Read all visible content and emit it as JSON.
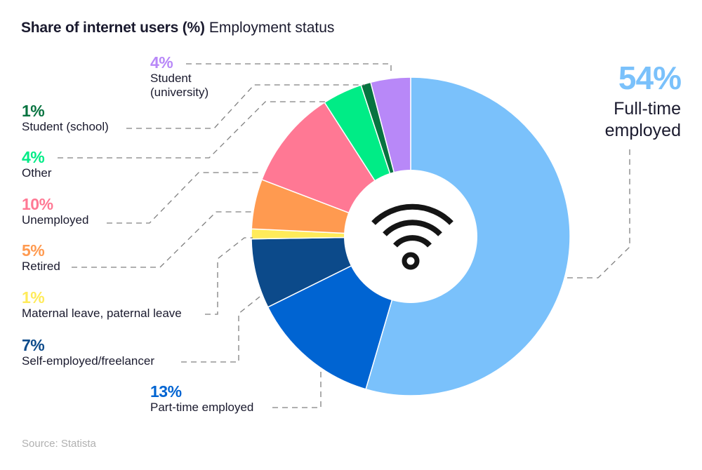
{
  "title": {
    "bold": "Share of internet users (%)",
    "light": "Employment status"
  },
  "source": "Source: Statista",
  "center_icon": "wifi-icon",
  "chart_data": {
    "type": "pie",
    "variant": "donut",
    "title": "Share of internet users (%) Employment status",
    "unit": "%",
    "start_angle_deg": 0,
    "direction": "clockwise",
    "categories": [
      "Full-time employed",
      "Part-time employed",
      "Self-employed/freelancer",
      "Maternal leave, paternal leave",
      "Retired",
      "Unemployed",
      "Other",
      "Student (school)",
      "Student (university)"
    ],
    "values": [
      54,
      13,
      7,
      1,
      5,
      10,
      4,
      1,
      4
    ],
    "colors": [
      "#7ac1fb",
      "#0064d2",
      "#0c4a8a",
      "#ffeb5a",
      "#ff9a50",
      "#ff7894",
      "#00ec86",
      "#077340",
      "#b888f8"
    ],
    "labels": [
      {
        "pct": "54%",
        "name_lines": [
          "Full-time",
          "employed"
        ]
      },
      {
        "pct": "13%",
        "name": "Part-time employed"
      },
      {
        "pct": "7%",
        "name": "Self-employed/freelancer"
      },
      {
        "pct": "1%",
        "name": "Maternal leave, paternal leave"
      },
      {
        "pct": "5%",
        "name": "Retired"
      },
      {
        "pct": "10%",
        "name": "Unemployed"
      },
      {
        "pct": "4%",
        "name": "Other"
      },
      {
        "pct": "1%",
        "name": "Student (school)"
      },
      {
        "pct": "4%",
        "name_lines": [
          "Student",
          "(university)"
        ]
      }
    ],
    "legend": "none (direct labels with dashed leader lines)"
  }
}
